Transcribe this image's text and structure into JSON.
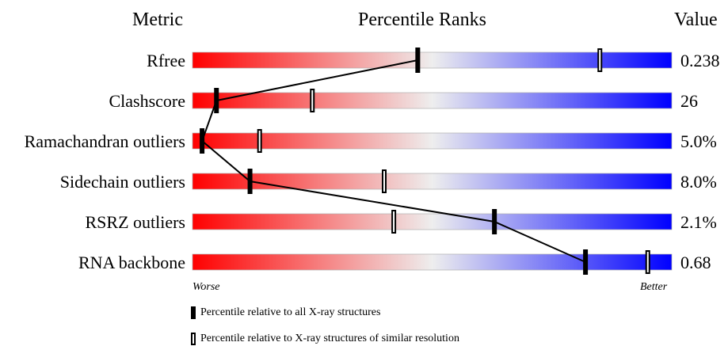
{
  "header": {
    "metric": "Metric",
    "title": "Percentile Ranks",
    "value": "Value"
  },
  "colors": {
    "worse": "#ff0000",
    "mid": "#eeeeee",
    "better": "#0000ff",
    "connector": "#000000"
  },
  "chart_data": {
    "type": "percentile-bar",
    "title": "Percentile Ranks",
    "scale": [
      0,
      100
    ],
    "rows": [
      {
        "metric": "Rfree",
        "value": "0.238",
        "all": 47,
        "similar": 85
      },
      {
        "metric": "Clashscore",
        "value": "26",
        "all": 5,
        "similar": 25
      },
      {
        "metric": "Ramachandran outliers",
        "value": "5.0%",
        "all": 2,
        "similar": 14
      },
      {
        "metric": "Sidechain outliers",
        "value": "8.0%",
        "all": 12,
        "similar": 40
      },
      {
        "metric": "RSRZ outliers",
        "value": "2.1%",
        "all": 63,
        "similar": 42
      },
      {
        "metric": "RNA backbone",
        "value": "0.68",
        "all": 82,
        "similar": 95
      }
    ]
  },
  "axis": {
    "worse": "Worse",
    "better": "Better"
  },
  "legend": {
    "all": "Percentile relative to all X-ray structures",
    "similar": "Percentile relative to X-ray structures of similar resolution"
  }
}
